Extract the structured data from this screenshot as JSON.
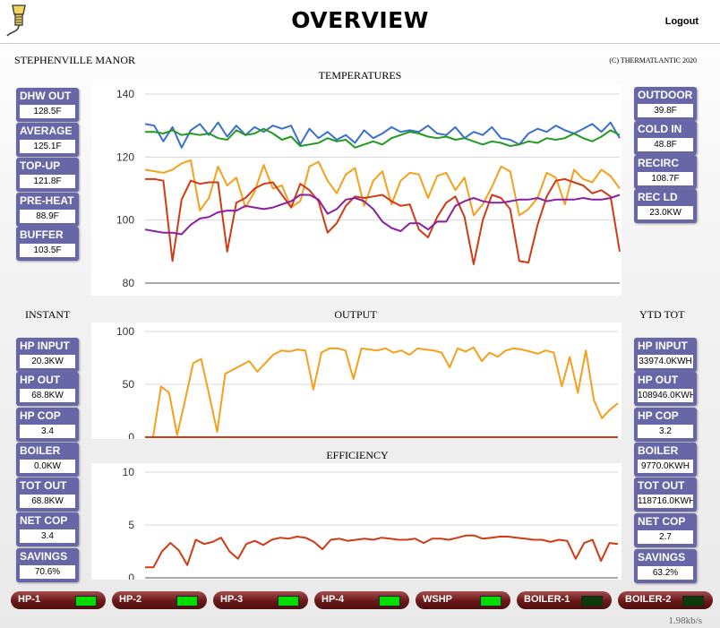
{
  "header": {
    "title": "OVERVIEW",
    "logout_label": "Logout"
  },
  "site_name": "STEPHENVILLE MANOR",
  "copyright": "(C) THERMATLANTIC 2020",
  "sections": {
    "temperatures": "TEMPERATURES",
    "output": "OUTPUT",
    "efficiency": "EFFICIENCY",
    "instant": "INSTANT",
    "ytd": "YTD TOT"
  },
  "temps_left": [
    {
      "label": "DHW OUT",
      "value": "128.5F"
    },
    {
      "label": "AVERAGE",
      "value": "125.1F"
    },
    {
      "label": "TOP-UP",
      "value": "121.8F"
    },
    {
      "label": "PRE-HEAT",
      "value": "88.9F"
    },
    {
      "label": "BUFFER",
      "value": "103.5F"
    }
  ],
  "temps_right": [
    {
      "label": "OUTDOOR",
      "value": "39.8F"
    },
    {
      "label": "COLD IN",
      "value": "48.8F"
    },
    {
      "label": "RECIRC",
      "value": "108.7F"
    },
    {
      "label": "REC LD",
      "value": "23.0KW"
    }
  ],
  "instant": [
    {
      "label": "HP INPUT",
      "value": "20.3KW"
    },
    {
      "label": "HP OUT",
      "value": "68.8KW"
    },
    {
      "label": "HP COP",
      "value": "3.4"
    },
    {
      "label": "BOILER",
      "value": "0.0KW"
    },
    {
      "label": "TOT OUT",
      "value": "68.8KW"
    },
    {
      "label": "NET COP",
      "value": "3.4"
    },
    {
      "label": "SAVINGS",
      "value": "70.6%"
    }
  ],
  "ytd": [
    {
      "label": "HP INPUT",
      "value": "33974.0KWH"
    },
    {
      "label": "HP OUT",
      "value": "108946.0KWH"
    },
    {
      "label": "HP COP",
      "value": "3.2"
    },
    {
      "label": "BOILER",
      "value": "9770.0KWH"
    },
    {
      "label": "TOT OUT",
      "value": "118716.0KWH"
    },
    {
      "label": "NET COP",
      "value": "2.7"
    },
    {
      "label": "SAVINGS",
      "value": "63.2%"
    }
  ],
  "devices": [
    {
      "label": "HP-1",
      "on": true
    },
    {
      "label": "HP-2",
      "on": true
    },
    {
      "label": "HP-3",
      "on": true
    },
    {
      "label": "HP-4",
      "on": true
    },
    {
      "label": "WSHP",
      "on": true
    },
    {
      "label": "BOILER-1",
      "on": false
    },
    {
      "label": "BOILER-2",
      "on": false
    }
  ],
  "colors": {
    "tile": "#6767a8",
    "led_on": "#00dd00",
    "led_off": "#0d3a0d",
    "device": "#6a1717"
  },
  "data_rate": "1.98kb/s",
  "chart_data": [
    {
      "type": "line",
      "title": "TEMPERATURES",
      "ylim": [
        80,
        140
      ],
      "yticks": [
        80,
        100,
        120,
        140
      ],
      "grid": true,
      "series": [
        {
          "color": "#3a6fd0",
          "values": [
            130.5,
            130,
            125,
            129.5,
            123,
            128.5,
            130.5,
            127,
            131,
            126.5,
            130,
            127,
            129.5,
            128,
            130,
            129,
            130,
            124,
            129,
            126,
            128,
            125.5,
            127,
            124.5,
            128.5,
            126,
            127.5,
            129.5,
            128,
            128.5,
            128,
            130,
            127.5,
            127,
            129.5,
            126,
            128,
            127,
            129.5,
            126,
            125.5,
            124,
            127.5,
            129,
            128,
            130,
            128.5,
            127.5,
            129,
            130.5,
            128,
            131,
            126
          ]
        },
        {
          "color": "#229922",
          "values": [
            128,
            128,
            127.5,
            128.5,
            127,
            127.5,
            127,
            127.5,
            126,
            125.5,
            128.5,
            127,
            127.5,
            129,
            127.5,
            125.5,
            126.5,
            123.5,
            124,
            124.5,
            126,
            125,
            125.5,
            123,
            124,
            125,
            124,
            126,
            127,
            128,
            127.5,
            126.5,
            126,
            126.5,
            125.5,
            126,
            125,
            124,
            125,
            124.5,
            123.5,
            124,
            125,
            124.5,
            126,
            125.5,
            126,
            127.5,
            126,
            125,
            126.5,
            128.5,
            127
          ]
        },
        {
          "color": "#f5a01c",
          "values": [
            116,
            115.5,
            115,
            116,
            118,
            119,
            103,
            107,
            117,
            111,
            113.5,
            104,
            109,
            117.5,
            110,
            111,
            104,
            106,
            117,
            118.5,
            112.5,
            108.5,
            114.5,
            116.5,
            104.5,
            112.5,
            115.5,
            105,
            112.5,
            115,
            114.5,
            107,
            114,
            115,
            109.5,
            113.5,
            101.5,
            105,
            110.5,
            117,
            115.5,
            101.5,
            103.5,
            107,
            115,
            113.5,
            105,
            116,
            113,
            112,
            116,
            114,
            110
          ]
        },
        {
          "color": "#d03a14",
          "values": [
            113,
            113,
            112.5,
            87,
            106.5,
            112.5,
            111.5,
            112,
            112,
            90,
            105.5,
            107,
            110,
            111.5,
            112,
            108,
            104,
            111.5,
            109.5,
            106,
            96,
            99,
            104.5,
            107.5,
            107,
            107.5,
            108,
            106,
            104.5,
            105,
            97,
            94.5,
            101,
            105.5,
            107.5,
            101,
            86,
            100,
            108,
            107,
            103.5,
            87,
            86.5,
            98.5,
            107.5,
            112.5,
            113,
            112,
            111,
            108.5,
            109.5,
            107.5,
            90
          ]
        },
        {
          "color": "#8b1fa0",
          "values": [
            97,
            96.5,
            96,
            96,
            95.5,
            98.5,
            100.5,
            101,
            102.5,
            103,
            103,
            104.5,
            104,
            103.5,
            104,
            105,
            106,
            108,
            108,
            106.5,
            102,
            103.5,
            106.5,
            107,
            106,
            103.5,
            99.5,
            97.5,
            96.5,
            99,
            99,
            97,
            99.5,
            99.5,
            104.5,
            106,
            107,
            106,
            105.5,
            105.5,
            106,
            106.5,
            106.5,
            107,
            106,
            106.5,
            106.5,
            106.5,
            107,
            106.5,
            106.5,
            107,
            108
          ]
        }
      ]
    },
    {
      "type": "line",
      "title": "OUTPUT",
      "ylim": [
        0,
        100
      ],
      "yticks": [
        0,
        50,
        100
      ],
      "grid": true,
      "series": [
        {
          "color": "#f5a01c",
          "values": [
            0,
            0,
            48,
            42,
            2,
            35,
            70,
            74,
            40,
            5,
            60,
            64,
            68,
            72,
            62,
            70,
            78,
            82,
            81,
            83,
            82,
            45,
            80,
            84,
            84,
            82,
            55,
            84,
            83,
            82,
            84,
            80,
            82,
            78,
            84,
            83,
            82,
            80,
            66,
            84,
            81,
            85,
            72,
            80,
            76,
            82,
            84,
            83,
            81,
            79,
            82,
            80,
            48,
            76,
            42,
            82,
            35,
            18,
            26,
            32
          ]
        },
        {
          "color": "#d03a14",
          "values": [
            0,
            0,
            0,
            0,
            0,
            0,
            0,
            0,
            0,
            0,
            0,
            0,
            0,
            0,
            0,
            0,
            0,
            0,
            0,
            0,
            0,
            0,
            0,
            0,
            0,
            0,
            0,
            0,
            0,
            0,
            0,
            0,
            0,
            0,
            0,
            0,
            0,
            0,
            0,
            0,
            0,
            0,
            0,
            0,
            0,
            0,
            0,
            0,
            0,
            0,
            0,
            0,
            0,
            0,
            0,
            0,
            0,
            0,
            0,
            0
          ]
        }
      ]
    },
    {
      "type": "line",
      "title": "EFFICIENCY",
      "ylim": [
        0,
        10
      ],
      "yticks": [
        0,
        5,
        10
      ],
      "grid": true,
      "series": [
        {
          "color": "#d03a14",
          "values": [
            1,
            1,
            2.5,
            3.3,
            2.6,
            1.2,
            3.6,
            3.2,
            3.4,
            3.8,
            2.5,
            1.8,
            3.2,
            3.5,
            3.1,
            3.6,
            3.8,
            3.7,
            3.9,
            3.8,
            3.4,
            2.7,
            3.6,
            3.7,
            3.5,
            3.6,
            3.7,
            3.6,
            3.8,
            3.7,
            3.6,
            3.6,
            3.7,
            3.3,
            3.7,
            3.7,
            3.6,
            3.8,
            4,
            4,
            3.7,
            3.8,
            3.9,
            3.9,
            3.8,
            3.7,
            3.6,
            3.6,
            3.4,
            3.6,
            3.5,
            1.8,
            3.3,
            3.6,
            1.6,
            3.3,
            3.2
          ]
        }
      ]
    }
  ]
}
